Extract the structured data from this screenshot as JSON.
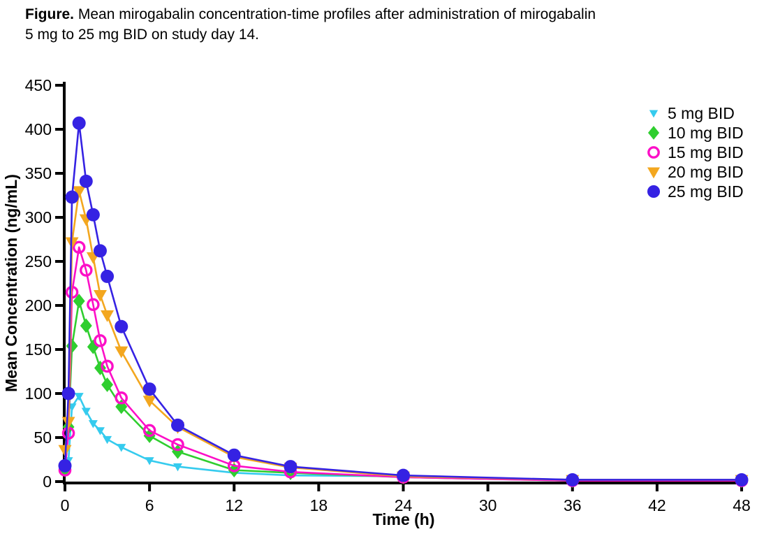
{
  "caption": {
    "label": "Figure.",
    "line1": "Mean mirogabalin concentration-time profiles after administration of mirogabalin",
    "line2": "5 mg to 25 mg BID on study day 14."
  },
  "chart_data": {
    "type": "line",
    "xlabel": "Time (h)",
    "ylabel": "Mean Concentration (ng/mL)",
    "xlim": [
      0,
      48
    ],
    "ylim": [
      0,
      450
    ],
    "xticks": [
      0,
      6,
      12,
      18,
      24,
      30,
      36,
      42,
      48
    ],
    "yticks": [
      0,
      50,
      100,
      150,
      200,
      250,
      300,
      350,
      400,
      450
    ],
    "grid": false,
    "legend_position": "top-right",
    "x": [
      0,
      0.25,
      0.5,
      1,
      1.5,
      2,
      2.5,
      3,
      4,
      6,
      8,
      12,
      16,
      24,
      36,
      48
    ],
    "series": [
      {
        "name": "5 mg BID",
        "color": "#35CBEE",
        "marker": "triangle-down",
        "marker_size": 13,
        "values": [
          16,
          24,
          85,
          97,
          80,
          66,
          58,
          48,
          39,
          24,
          17,
          10,
          7,
          6,
          2,
          1
        ]
      },
      {
        "name": "10 mg BID",
        "color": "#2FCE2F",
        "marker": "diamond",
        "marker_size": 18,
        "values": [
          14,
          62,
          154,
          205,
          177,
          153,
          129,
          110,
          85,
          52,
          34,
          13,
          10,
          5,
          1,
          1
        ]
      },
      {
        "name": "15 mg BID",
        "color": "#FC0FC7",
        "marker": "circle-open",
        "marker_size": 18,
        "values": [
          13,
          55,
          215,
          266,
          240,
          201,
          160,
          131,
          95,
          58,
          42,
          18,
          11,
          5,
          1,
          1
        ]
      },
      {
        "name": "20 mg BID",
        "color": "#F3A71F",
        "marker": "triangle-down",
        "marker_size": 19,
        "values": [
          36,
          68,
          272,
          330,
          298,
          255,
          212,
          189,
          148,
          92,
          62,
          28,
          16,
          6,
          2,
          2
        ]
      },
      {
        "name": "25 mg BID",
        "color": "#3522E3",
        "marker": "circle",
        "marker_size": 19,
        "values": [
          18,
          100,
          323,
          407,
          341,
          303,
          262,
          233,
          176,
          105,
          64,
          30,
          17,
          7,
          2,
          2
        ]
      }
    ]
  }
}
